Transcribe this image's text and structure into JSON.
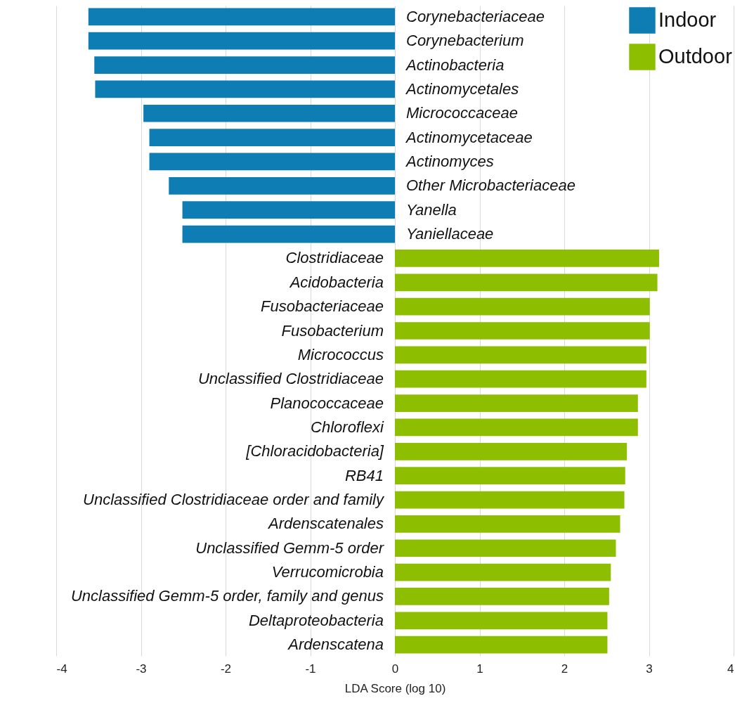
{
  "chart_data": {
    "type": "bar",
    "orientation": "horizontal",
    "xlabel": "LDA Score (log 10)",
    "categories": [
      "Corynebacteriaceae",
      "Corynebacterium",
      "Actinobacteria",
      "Actinomycetales",
      "Micrococcaceae",
      "Actinomycetaceae",
      "Actinomyces",
      "Other Microbacteriaceae",
      "Yanella",
      "Yaniellaceae",
      "Clostridiaceae",
      "Acidobacteria",
      "Fusobacteriaceae",
      "Fusobacterium",
      "Micrococcus",
      "Unclassified Clostridiaceae",
      "Planococcaceae",
      "Chloroflexi",
      "[Chloracidobacteria]",
      "RB41",
      "Unclassified Clostridiaceae order and family",
      "Ardenscatenales",
      "Unclassified Gemm-5 order",
      "Verrucomicrobia",
      "Unclassified Gemm-5 order, family and genus",
      "Deltaproteobacteria",
      "Ardenscatena"
    ],
    "series": [
      {
        "name": "Indoor",
        "color": "#0e7db3",
        "values": [
          -3.62,
          -3.62,
          -3.55,
          -3.54,
          -2.97,
          -2.9,
          -2.9,
          -2.67,
          -2.51,
          -2.51,
          null,
          null,
          null,
          null,
          null,
          null,
          null,
          null,
          null,
          null,
          null,
          null,
          null,
          null,
          null,
          null,
          null
        ]
      },
      {
        "name": "Outdoor",
        "color": "#8dbf00",
        "values": [
          null,
          null,
          null,
          null,
          null,
          null,
          null,
          null,
          null,
          null,
          3.12,
          3.1,
          3.01,
          3.01,
          2.97,
          2.97,
          2.87,
          2.87,
          2.74,
          2.72,
          2.71,
          2.66,
          2.61,
          2.55,
          2.53,
          2.51,
          2.51
        ]
      }
    ],
    "xlim": [
      -4,
      4
    ],
    "xticks": [
      -4,
      -3,
      -2,
      -1,
      0,
      1,
      2,
      3,
      4
    ],
    "grid": "x",
    "legend": "top right",
    "tick_labels": "x"
  }
}
